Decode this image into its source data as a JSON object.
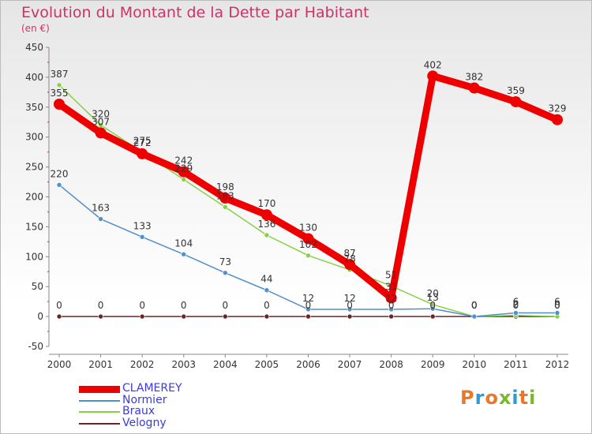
{
  "title": "Evolution du Montant de la Dette par Habitant",
  "unit": "(en €)",
  "logo": {
    "text": "Proxiti",
    "colors": [
      "#e8782a",
      "#2f9ad6",
      "#e8782a",
      "#7ab82e",
      "#2f9ad6",
      "#e8782a",
      "#7ab82e"
    ]
  },
  "chart_data": {
    "type": "line",
    "title": "Evolution du Montant de la Dette par Habitant",
    "ylabel": "(en €)",
    "x": [
      2000,
      2001,
      2002,
      2003,
      2004,
      2005,
      2006,
      2007,
      2008,
      2009,
      2010,
      2011,
      2012
    ],
    "ylim": [
      -50,
      450
    ],
    "yticks": [
      -50,
      0,
      50,
      100,
      150,
      200,
      250,
      300,
      350,
      400,
      450
    ],
    "grid": false,
    "legend": "bottom-left",
    "series": [
      {
        "name": "CLAMEREY",
        "color": "#ee0000",
        "width": 9,
        "marker": 7,
        "values": [
          355,
          307,
          272,
          242,
          198,
          170,
          130,
          87,
          31,
          402,
          382,
          359,
          329
        ]
      },
      {
        "name": "Normier",
        "color": "#4f8fcc",
        "width": 1.5,
        "marker": 3,
        "values": [
          220,
          163,
          133,
          104,
          73,
          44,
          12,
          12,
          12,
          13,
          0,
          6,
          6
        ]
      },
      {
        "name": "Braux",
        "color": "#88d044",
        "width": 1.5,
        "marker": 3,
        "values": [
          387,
          320,
          275,
          229,
          183,
          136,
          102,
          78,
          51,
          20,
          0,
          2,
          0
        ]
      },
      {
        "name": "Velogny",
        "color": "#6b2424",
        "width": 1.5,
        "marker": 3,
        "values": [
          0,
          0,
          0,
          0,
          0,
          0,
          0,
          0,
          0,
          0,
          0,
          0,
          0
        ]
      }
    ],
    "data_labels": [
      {
        "series": "CLAMEREY",
        "labels": [
          "355",
          "307",
          "272",
          "242",
          "198",
          "170",
          "130",
          "87",
          "31",
          "402",
          "382",
          "359",
          "329"
        ]
      },
      {
        "series": "Normier",
        "labels": [
          "220",
          "163",
          "133",
          "104",
          "73",
          "44",
          "12",
          "12",
          "12",
          "13",
          "0",
          "6",
          "6"
        ]
      },
      {
        "series": "Braux",
        "labels": [
          "387",
          "320",
          "275",
          "229",
          "183",
          "136",
          "102",
          "78",
          "51",
          "20",
          "0",
          "2",
          "0"
        ]
      },
      {
        "series": "Velogny",
        "labels": [
          "0",
          "0",
          "0",
          "0",
          "0",
          "0",
          "0",
          "0",
          "0",
          "0",
          "0",
          "0",
          "0"
        ]
      }
    ]
  }
}
